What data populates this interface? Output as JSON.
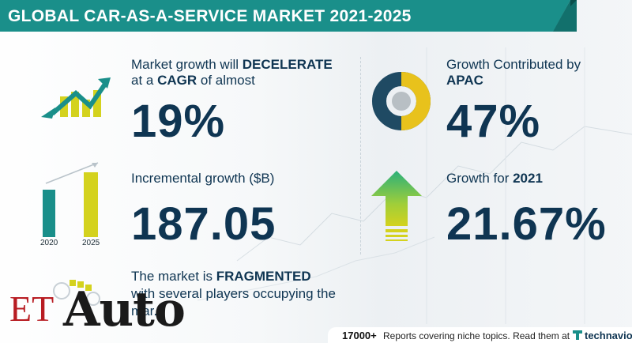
{
  "banner": {
    "title": "GLOBAL CAR-AS-A-SERVICE MARKET 2021-2025"
  },
  "stats": {
    "cagr": {
      "line1_prefix": "Market growth will ",
      "line1_bold": "DECELERATE",
      "line2_prefix": "at a ",
      "line2_bold": "CAGR",
      "line2_suffix": "  of almost",
      "value": "19%"
    },
    "incremental": {
      "label": "Incremental growth ($B)",
      "value": "187.05",
      "years": [
        "2020",
        "2025"
      ]
    },
    "market": {
      "prefix": "The market is ",
      "bold": "FRAGMENTED",
      "line2": "with several players occupying the",
      "line3": "mar..."
    },
    "apac": {
      "line1": "Growth Contributed by",
      "line2_bold": "APAC",
      "value": "47%"
    },
    "growth2021": {
      "prefix": "Growth for  ",
      "bold": "2021",
      "value": "21.67%"
    }
  },
  "footer": {
    "count": "17000+",
    "text": "Reports covering niche topics. Read them at",
    "brand": "technavio"
  },
  "logo": {
    "et": "ET",
    "auto": "Auto"
  },
  "colors": {
    "teal": "#1a8f8a",
    "navy": "#0f3552",
    "yellow": "#d4d21e",
    "green": "#2bb07a"
  }
}
